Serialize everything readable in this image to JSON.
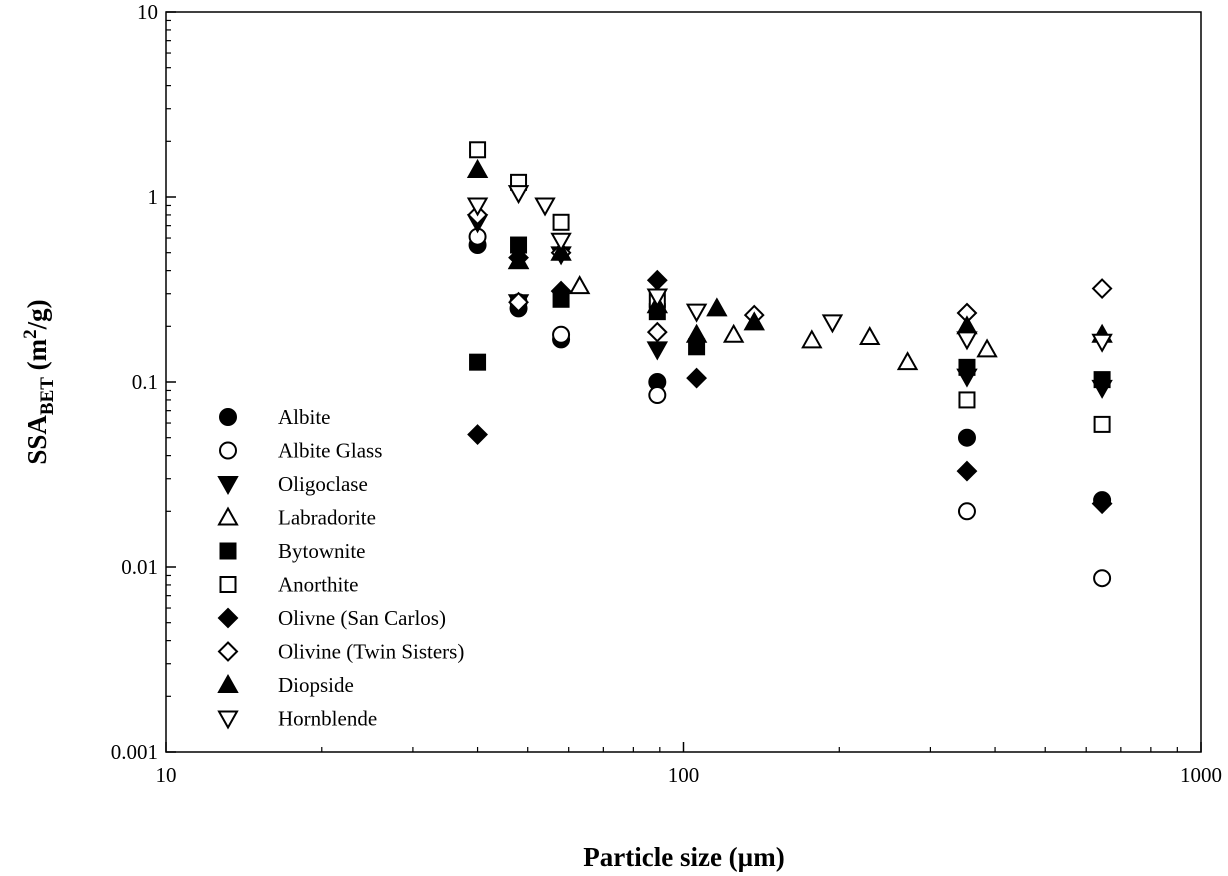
{
  "chart_data": {
    "type": "scatter",
    "title": "",
    "xlabel": "Particle size (µm)",
    "ylabel_main": "SSA",
    "ylabel_sub": "BET",
    "ylabel_unit_pre": " (m",
    "ylabel_unit_sup": "2",
    "ylabel_unit_post": "/g)",
    "xscale": "log",
    "yscale": "log",
    "xlim": [
      10,
      1000
    ],
    "ylim": [
      0.001,
      10
    ],
    "xticks": [
      {
        "v": 10,
        "label": "10"
      },
      {
        "v": 100,
        "label": "100"
      },
      {
        "v": 1000,
        "label": "1000"
      }
    ],
    "yticks": [
      {
        "v": 0.001,
        "label": "0.001"
      },
      {
        "v": 0.01,
        "label": "0.01"
      },
      {
        "v": 0.1,
        "label": "0.1"
      },
      {
        "v": 1,
        "label": "1"
      },
      {
        "v": 10,
        "label": "10"
      }
    ],
    "grid": false,
    "legend_position": "lower-left",
    "series": [
      {
        "name": "Albite",
        "marker": "circle",
        "filled": true,
        "points": [
          [
            40,
            0.55
          ],
          [
            48,
            0.25
          ],
          [
            58,
            0.17
          ],
          [
            89,
            0.1
          ],
          [
            353,
            0.05
          ],
          [
            644,
            0.023
          ]
        ]
      },
      {
        "name": "Albite Glass",
        "marker": "circle",
        "filled": false,
        "points": [
          [
            40,
            0.61
          ],
          [
            48,
            0.27
          ],
          [
            58,
            0.18
          ],
          [
            89,
            0.085
          ],
          [
            353,
            0.02
          ],
          [
            644,
            0.0087
          ]
        ]
      },
      {
        "name": "Oligoclase",
        "marker": "triangle-down",
        "filled": true,
        "points": [
          [
            40,
            0.73
          ],
          [
            48,
            0.27
          ],
          [
            58,
            0.49
          ],
          [
            89,
            0.15
          ],
          [
            353,
            0.107
          ],
          [
            644,
            0.093
          ]
        ]
      },
      {
        "name": "Labradorite",
        "marker": "triangle-up",
        "filled": false,
        "points": [
          [
            48,
            0.45
          ],
          [
            63,
            0.33
          ],
          [
            125,
            0.18
          ],
          [
            177,
            0.168
          ],
          [
            229,
            0.175
          ],
          [
            271,
            0.128
          ],
          [
            386,
            0.15
          ]
        ]
      },
      {
        "name": "Bytownite",
        "marker": "square",
        "filled": true,
        "points": [
          [
            40,
            0.128
          ],
          [
            48,
            0.55
          ],
          [
            58,
            0.28
          ],
          [
            89,
            0.24
          ],
          [
            106,
            0.155
          ],
          [
            353,
            0.12
          ],
          [
            644,
            0.103
          ]
        ]
      },
      {
        "name": "Anorthite",
        "marker": "square",
        "filled": false,
        "points": [
          [
            40,
            1.8
          ],
          [
            48,
            1.2
          ],
          [
            58,
            0.73
          ],
          [
            89,
            0.28
          ],
          [
            353,
            0.08
          ],
          [
            644,
            0.059
          ]
        ]
      },
      {
        "name": "Olivne (San Carlos)",
        "marker": "diamond",
        "filled": true,
        "points": [
          [
            40,
            0.052
          ],
          [
            48,
            0.47
          ],
          [
            58,
            0.31
          ],
          [
            89,
            0.355
          ],
          [
            106,
            0.105
          ],
          [
            353,
            0.033
          ],
          [
            644,
            0.022
          ]
        ]
      },
      {
        "name": "Olivine (Twin Sisters)",
        "marker": "diamond",
        "filled": false,
        "points": [
          [
            40,
            0.8
          ],
          [
            48,
            0.27
          ],
          [
            58,
            0.5
          ],
          [
            89,
            0.186
          ],
          [
            137,
            0.23
          ],
          [
            353,
            0.236
          ],
          [
            644,
            0.32
          ]
        ]
      },
      {
        "name": "Diopside",
        "marker": "triangle-up",
        "filled": true,
        "points": [
          [
            40,
            1.4
          ],
          [
            48,
            0.45
          ],
          [
            58,
            0.5
          ],
          [
            89,
            0.26
          ],
          [
            106,
            0.18
          ],
          [
            116,
            0.25
          ],
          [
            137,
            0.21
          ],
          [
            353,
            0.2
          ],
          [
            644,
            0.18
          ]
        ]
      },
      {
        "name": "Hornblende",
        "marker": "triangle-down",
        "filled": false,
        "points": [
          [
            40,
            0.9
          ],
          [
            48,
            1.05
          ],
          [
            54,
            0.9
          ],
          [
            58,
            0.58
          ],
          [
            89,
            0.29
          ],
          [
            106,
            0.24
          ],
          [
            194,
            0.21
          ],
          [
            353,
            0.17
          ],
          [
            644,
            0.165
          ]
        ]
      }
    ]
  }
}
